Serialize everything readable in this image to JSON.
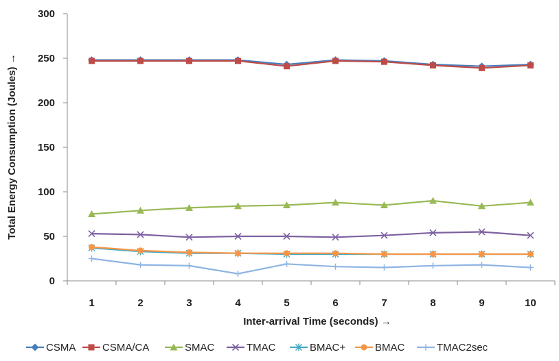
{
  "chart_data": {
    "type": "line",
    "title": "",
    "xlabel": "Inter-arrival Time (seconds) →",
    "ylabel": "Total Energy Consumption (Joules) →",
    "x": [
      1,
      2,
      3,
      4,
      5,
      6,
      7,
      8,
      9,
      10
    ],
    "ylim": [
      0,
      300
    ],
    "yticks": [
      0,
      50,
      100,
      150,
      200,
      250,
      300
    ],
    "grid": false,
    "legend_position": "bottom",
    "series": [
      {
        "name": "CSMA",
        "color": "#4a7ebb",
        "marker": "diamond",
        "values": [
          248,
          248,
          248,
          248,
          243,
          248,
          247,
          243,
          241,
          243
        ]
      },
      {
        "name": "CSMA/CA",
        "color": "#be4b48",
        "marker": "square",
        "values": [
          247,
          247,
          247,
          247,
          241,
          247,
          246,
          242,
          239,
          242
        ]
      },
      {
        "name": "SMAC",
        "color": "#98b954",
        "marker": "triangle",
        "values": [
          75,
          79,
          82,
          84,
          85,
          88,
          85,
          90,
          84,
          88
        ]
      },
      {
        "name": "TMAC",
        "color": "#7d60a0",
        "marker": "x",
        "values": [
          53,
          52,
          49,
          50,
          50,
          49,
          51,
          54,
          55,
          51
        ]
      },
      {
        "name": "BMAC+",
        "color": "#46aac5",
        "marker": "star",
        "values": [
          37,
          33,
          31,
          31,
          30,
          30,
          30,
          30,
          30,
          30
        ]
      },
      {
        "name": "BMAC",
        "color": "#f79646",
        "marker": "circle",
        "values": [
          38,
          34,
          32,
          31,
          31,
          31,
          30,
          30,
          30,
          30
        ]
      },
      {
        "name": "TMAC2sec",
        "color": "#8eb4e3",
        "marker": "plus",
        "values": [
          25,
          18,
          17,
          8,
          19,
          16,
          15,
          17,
          18,
          15
        ]
      }
    ]
  }
}
